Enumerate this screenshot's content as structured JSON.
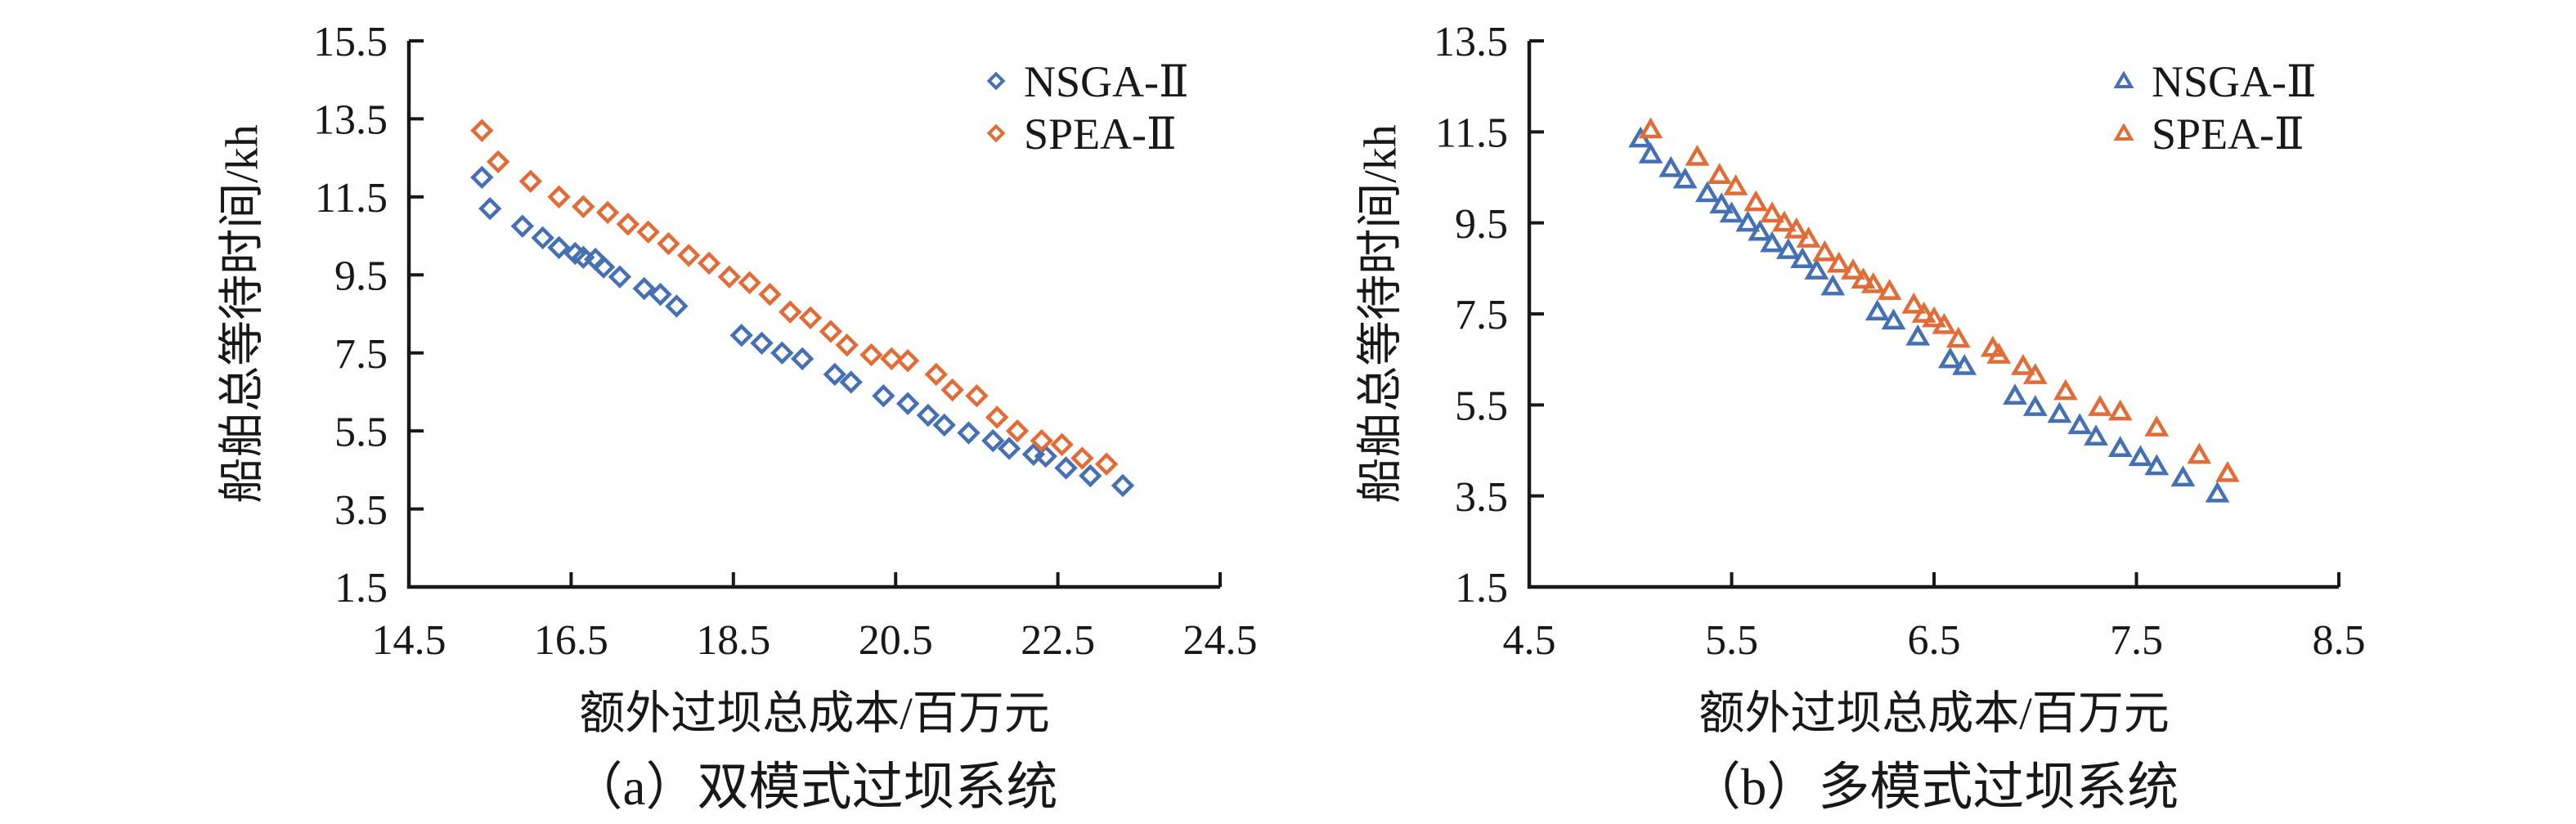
{
  "figure": {
    "background": "#ffffff",
    "axis_color": "#181818",
    "colors": {
      "nsga": "#4570B4",
      "spea": "#E26C38"
    }
  },
  "chart_data": [
    {
      "type": "scatter",
      "title": "（a）双模式过坝系统",
      "xlabel": "额外过坝总成本/百万元",
      "ylabel": "船舶总等待时间/kh",
      "xlim": [
        14.5,
        24.5
      ],
      "ylim": [
        1.5,
        15.5
      ],
      "xtick_labels": [
        "14.5",
        "16.5",
        "18.5",
        "20.5",
        "22.5",
        "24.5"
      ],
      "ytick_labels": [
        "1.5",
        "3.5",
        "5.5",
        "7.5",
        "9.5",
        "11.5",
        "13.5",
        "15.5"
      ],
      "grid": false,
      "marker": "diamond",
      "legend_position": "top-right-inside",
      "series": [
        {
          "name": "NSGA-Ⅱ",
          "color": "#4570B4",
          "points": [
            [
              15.4,
              12.0
            ],
            [
              15.5,
              11.2
            ],
            [
              15.9,
              10.75
            ],
            [
              16.15,
              10.45
            ],
            [
              16.35,
              10.2
            ],
            [
              16.55,
              10.05
            ],
            [
              16.65,
              9.95
            ],
            [
              16.8,
              9.9
            ],
            [
              16.9,
              9.7
            ],
            [
              17.1,
              9.45
            ],
            [
              17.4,
              9.15
            ],
            [
              17.6,
              9.0
            ],
            [
              17.8,
              8.7
            ],
            [
              18.6,
              7.95
            ],
            [
              18.85,
              7.75
            ],
            [
              19.1,
              7.5
            ],
            [
              19.35,
              7.35
            ],
            [
              19.75,
              6.95
            ],
            [
              19.95,
              6.75
            ],
            [
              20.35,
              6.4
            ],
            [
              20.65,
              6.2
            ],
            [
              20.9,
              5.9
            ],
            [
              21.1,
              5.65
            ],
            [
              21.4,
              5.45
            ],
            [
              21.7,
              5.25
            ],
            [
              21.9,
              5.05
            ],
            [
              22.2,
              4.9
            ],
            [
              22.35,
              4.85
            ],
            [
              22.6,
              4.55
            ],
            [
              22.9,
              4.35
            ],
            [
              23.3,
              4.1
            ]
          ]
        },
        {
          "name": "SPEA-Ⅱ",
          "color": "#E26C38",
          "points": [
            [
              15.4,
              13.2
            ],
            [
              15.6,
              12.4
            ],
            [
              16.0,
              11.9
            ],
            [
              16.35,
              11.5
            ],
            [
              16.65,
              11.25
            ],
            [
              16.95,
              11.1
            ],
            [
              17.2,
              10.8
            ],
            [
              17.45,
              10.6
            ],
            [
              17.7,
              10.3
            ],
            [
              17.95,
              10.0
            ],
            [
              18.2,
              9.8
            ],
            [
              18.45,
              9.45
            ],
            [
              18.7,
              9.3
            ],
            [
              18.95,
              9.0
            ],
            [
              19.2,
              8.55
            ],
            [
              19.45,
              8.4
            ],
            [
              19.7,
              8.05
            ],
            [
              19.9,
              7.7
            ],
            [
              20.2,
              7.45
            ],
            [
              20.45,
              7.35
            ],
            [
              20.65,
              7.3
            ],
            [
              21.0,
              6.95
            ],
            [
              21.2,
              6.55
            ],
            [
              21.5,
              6.4
            ],
            [
              21.75,
              5.85
            ],
            [
              22.0,
              5.5
            ],
            [
              22.3,
              5.25
            ],
            [
              22.55,
              5.15
            ],
            [
              22.8,
              4.8
            ],
            [
              23.1,
              4.65
            ]
          ]
        }
      ]
    },
    {
      "type": "scatter",
      "title": "（b）多模式过坝系统",
      "xlabel": "额外过坝总成本/百万元",
      "ylabel": "船舶总等待时间/kh",
      "xlim": [
        4.5,
        8.5
      ],
      "ylim": [
        1.5,
        13.5
      ],
      "xtick_labels": [
        "4.5",
        "5.5",
        "6.5",
        "7.5",
        "8.5"
      ],
      "ytick_labels": [
        "1.5",
        "3.5",
        "5.5",
        "7.5",
        "9.5",
        "11.5",
        "13.5"
      ],
      "grid": false,
      "marker": "triangle",
      "legend_position": "top-right-inside",
      "series": [
        {
          "name": "NSGA-Ⅱ",
          "color": "#4570B4",
          "points": [
            [
              5.05,
              11.35
            ],
            [
              5.1,
              11.0
            ],
            [
              5.2,
              10.7
            ],
            [
              5.27,
              10.45
            ],
            [
              5.38,
              10.15
            ],
            [
              5.45,
              9.9
            ],
            [
              5.5,
              9.7
            ],
            [
              5.58,
              9.5
            ],
            [
              5.64,
              9.3
            ],
            [
              5.7,
              9.05
            ],
            [
              5.78,
              8.9
            ],
            [
              5.85,
              8.7
            ],
            [
              5.92,
              8.45
            ],
            [
              6.0,
              8.1
            ],
            [
              6.22,
              7.55
            ],
            [
              6.3,
              7.35
            ],
            [
              6.42,
              7.0
            ],
            [
              6.58,
              6.5
            ],
            [
              6.65,
              6.35
            ],
            [
              6.9,
              5.7
            ],
            [
              7.0,
              5.45
            ],
            [
              7.12,
              5.3
            ],
            [
              7.22,
              5.05
            ],
            [
              7.3,
              4.8
            ],
            [
              7.42,
              4.55
            ],
            [
              7.52,
              4.35
            ],
            [
              7.6,
              4.15
            ],
            [
              7.73,
              3.9
            ],
            [
              7.9,
              3.55
            ]
          ]
        },
        {
          "name": "SPEA-Ⅱ",
          "color": "#E26C38",
          "points": [
            [
              5.1,
              11.55
            ],
            [
              5.33,
              10.95
            ],
            [
              5.44,
              10.55
            ],
            [
              5.52,
              10.3
            ],
            [
              5.62,
              9.95
            ],
            [
              5.7,
              9.7
            ],
            [
              5.76,
              9.5
            ],
            [
              5.82,
              9.35
            ],
            [
              5.88,
              9.15
            ],
            [
              5.96,
              8.85
            ],
            [
              6.03,
              8.6
            ],
            [
              6.1,
              8.45
            ],
            [
              6.15,
              8.25
            ],
            [
              6.2,
              8.15
            ],
            [
              6.28,
              8.0
            ],
            [
              6.4,
              7.7
            ],
            [
              6.45,
              7.5
            ],
            [
              6.5,
              7.4
            ],
            [
              6.55,
              7.25
            ],
            [
              6.62,
              6.95
            ],
            [
              6.79,
              6.75
            ],
            [
              6.82,
              6.6
            ],
            [
              6.94,
              6.35
            ],
            [
              7.0,
              6.15
            ],
            [
              7.15,
              5.8
            ],
            [
              7.32,
              5.45
            ],
            [
              7.42,
              5.35
            ],
            [
              7.6,
              5.0
            ],
            [
              7.81,
              4.4
            ],
            [
              7.95,
              4.0
            ]
          ]
        }
      ]
    }
  ]
}
